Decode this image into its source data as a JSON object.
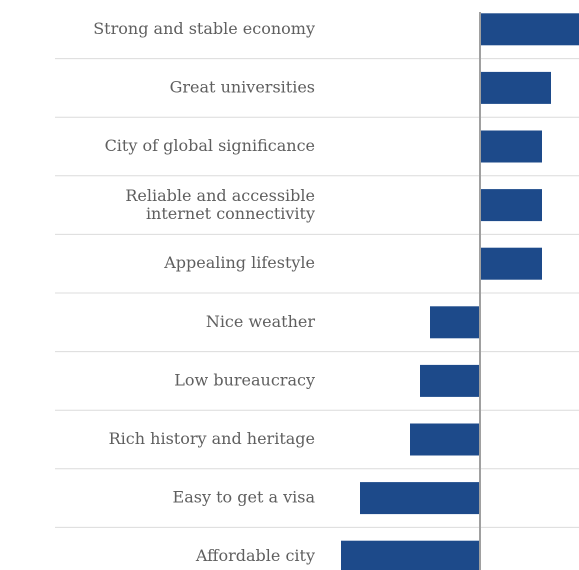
{
  "chart_data": {
    "type": "bar",
    "orientation": "horizontal",
    "categories": [
      "Strong and stable economy",
      "Great universities",
      "City of global significance",
      [
        "Reliable and accessible",
        "internet connectivity"
      ],
      "Appealing lifestyle",
      "Nice weather",
      "Low bureaucracy",
      "Rich history and heritage",
      "Easy to get a visa",
      "Affordable city"
    ],
    "values": [
      100,
      71,
      62,
      62,
      62,
      -50,
      -60,
      -70,
      -120,
      -139
    ],
    "color": "#1d4a8a",
    "xlim": [
      -140,
      100
    ]
  }
}
